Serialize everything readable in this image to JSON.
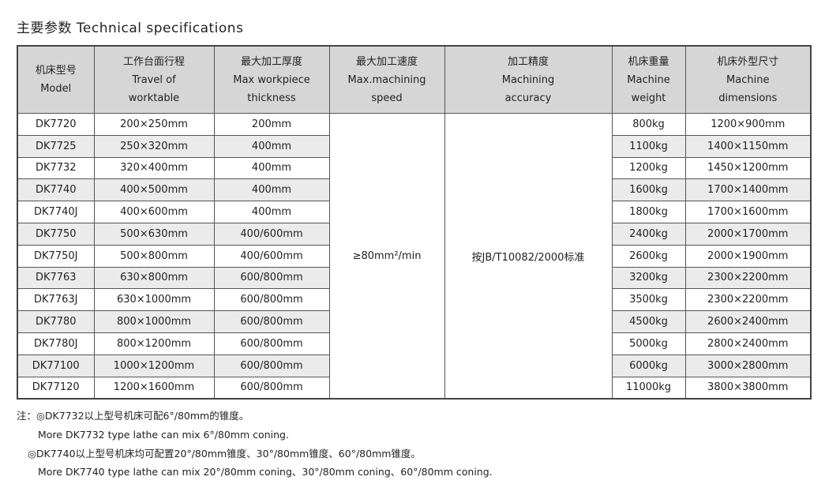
{
  "title": "主要参数 Technical specifications",
  "table": {
    "headers": [
      {
        "cn": "机床型号",
        "en1": "Model",
        "en2": ""
      },
      {
        "cn": "工作台面行程",
        "en1": "Travel of",
        "en2": "worktable"
      },
      {
        "cn": "最大加工厚度",
        "en1": "Max workpiece",
        "en2": "thickness"
      },
      {
        "cn": "最大加工速度",
        "en1": "Max.machining",
        "en2": "speed"
      },
      {
        "cn": "加工精度",
        "en1": "Machining",
        "en2": "accuracy"
      },
      {
        "cn": "机床重量",
        "en1": "Machine",
        "en2": "weight"
      },
      {
        "cn": "机床外型尺寸",
        "en1": "Machine",
        "en2": "dimensions"
      }
    ],
    "speed": "≥80mm²/min",
    "accuracy": "按JB/T10082/2000标准",
    "rows": [
      {
        "model": "DK7720",
        "travel": "200×250mm",
        "thickness": "200mm",
        "weight": "800kg",
        "dims": "1200×900mm"
      },
      {
        "model": "DK7725",
        "travel": "250×320mm",
        "thickness": "400mm",
        "weight": "1100kg",
        "dims": "1400×1150mm"
      },
      {
        "model": "DK7732",
        "travel": "320×400mm",
        "thickness": "400mm",
        "weight": "1200kg",
        "dims": "1450×1200mm"
      },
      {
        "model": "DK7740",
        "travel": "400×500mm",
        "thickness": "400mm",
        "weight": "1600kg",
        "dims": "1700×1400mm"
      },
      {
        "model": "DK7740J",
        "travel": "400×600mm",
        "thickness": "400mm",
        "weight": "1800kg",
        "dims": "1700×1600mm"
      },
      {
        "model": "DK7750",
        "travel": "500×630mm",
        "thickness": "400/600mm",
        "weight": "2400kg",
        "dims": "2000×1700mm"
      },
      {
        "model": "DK7750J",
        "travel": "500×800mm",
        "thickness": "400/600mm",
        "weight": "2600kg",
        "dims": "2000×1900mm"
      },
      {
        "model": "DK7763",
        "travel": "630×800mm",
        "thickness": "600/800mm",
        "weight": "3200kg",
        "dims": "2300×2200mm"
      },
      {
        "model": "DK7763J",
        "travel": "630×1000mm",
        "thickness": "600/800mm",
        "weight": "3500kg",
        "dims": "2300×2200mm"
      },
      {
        "model": "DK7780",
        "travel": "800×1000mm",
        "thickness": "600/800mm",
        "weight": "4500kg",
        "dims": "2600×2400mm"
      },
      {
        "model": "DK7780J",
        "travel": "800×1200mm",
        "thickness": "600/800mm",
        "weight": "5000kg",
        "dims": "2800×2400mm"
      },
      {
        "model": "DK77100",
        "travel": "1000×1200mm",
        "thickness": "600/800mm",
        "weight": "6000kg",
        "dims": "3000×2800mm"
      },
      {
        "model": "DK77120",
        "travel": "1200×1600mm",
        "thickness": "600/800mm",
        "weight": "11000kg",
        "dims": "3800×3800mm"
      }
    ]
  },
  "notes": [
    "注：◎DK7732以上型号机床可配6°/80mm的锥度。",
    "More DK7732 type lathe can mix 6°/80mm coning.",
    "◎DK7740以上型号机床均可配置20°/80mm锥度、30°/80mm锥度、60°/80mm锥度。",
    "More DK7740 type lathe can mix 20°/80mm coning、30°/80mm coning、60°/80mm coning."
  ],
  "colors": {
    "header_bg": "#d6d6d6",
    "alt_row_bg": "#ebebeb",
    "border": "#444444"
  }
}
